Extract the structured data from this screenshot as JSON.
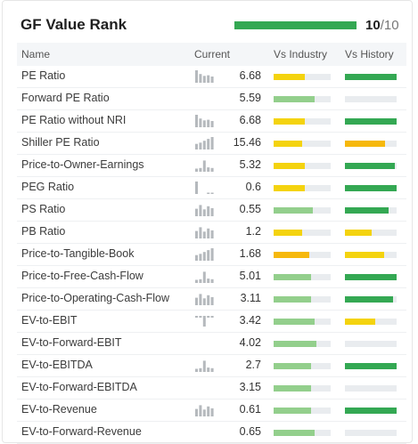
{
  "header": {
    "title": "GF Value Rank",
    "rank_value": "10",
    "rank_total": "/10",
    "rank_fraction": 1.0
  },
  "columns": {
    "name": "Name",
    "current": "Current",
    "vs_industry": "Vs Industry",
    "vs_history": "Vs History"
  },
  "colors": {
    "dark_green": "#34a853",
    "light_green": "#93cf8c",
    "yellow": "#f4d30f",
    "orange": "#f6b80c",
    "track": "#e9ecef"
  },
  "rows": [
    {
      "name": "PE Ratio",
      "value": "6.68",
      "spark": "bars-desc",
      "industry": {
        "level": 0.55,
        "color": "yellow"
      },
      "history": {
        "level": 1.0,
        "color": "dark_green"
      }
    },
    {
      "name": "Forward PE Ratio",
      "value": "5.59",
      "spark": "none",
      "industry": {
        "level": 0.72,
        "color": "light_green"
      },
      "history": {
        "level": 0.0,
        "color": "dark_green"
      }
    },
    {
      "name": "PE Ratio without NRI",
      "value": "6.68",
      "spark": "bars-desc",
      "industry": {
        "level": 0.55,
        "color": "yellow"
      },
      "history": {
        "level": 1.0,
        "color": "dark_green"
      }
    },
    {
      "name": "Shiller PE Ratio",
      "value": "15.46",
      "spark": "bars-asc",
      "industry": {
        "level": 0.5,
        "color": "yellow"
      },
      "history": {
        "level": 0.78,
        "color": "orange"
      }
    },
    {
      "name": "Price-to-Owner-Earnings",
      "value": "5.32",
      "spark": "bars-low",
      "industry": {
        "level": 0.55,
        "color": "yellow"
      },
      "history": {
        "level": 0.97,
        "color": "dark_green"
      }
    },
    {
      "name": "PEG Ratio",
      "value": "0.6",
      "spark": "bars-one",
      "industry": {
        "level": 0.55,
        "color": "yellow"
      },
      "history": {
        "level": 1.0,
        "color": "dark_green"
      }
    },
    {
      "name": "PS Ratio",
      "value": "0.55",
      "spark": "bars-mixed",
      "industry": {
        "level": 0.68,
        "color": "light_green"
      },
      "history": {
        "level": 0.85,
        "color": "dark_green"
      }
    },
    {
      "name": "PB Ratio",
      "value": "1.2",
      "spark": "bars-mixed",
      "industry": {
        "level": 0.5,
        "color": "yellow"
      },
      "history": {
        "level": 0.52,
        "color": "yellow"
      }
    },
    {
      "name": "Price-to-Tangible-Book",
      "value": "1.68",
      "spark": "bars-asc",
      "industry": {
        "level": 0.62,
        "color": "orange"
      },
      "history": {
        "level": 0.75,
        "color": "yellow"
      }
    },
    {
      "name": "Price-to-Free-Cash-Flow",
      "value": "5.01",
      "spark": "bars-low",
      "industry": {
        "level": 0.65,
        "color": "light_green"
      },
      "history": {
        "level": 1.0,
        "color": "dark_green"
      }
    },
    {
      "name": "Price-to-Operating-Cash-Flow",
      "value": "3.11",
      "spark": "bars-mixed",
      "industry": {
        "level": 0.65,
        "color": "light_green"
      },
      "history": {
        "level": 0.93,
        "color": "dark_green"
      }
    },
    {
      "name": "EV-to-EBIT",
      "value": "3.42",
      "spark": "bars-neg",
      "industry": {
        "level": 0.72,
        "color": "light_green"
      },
      "history": {
        "level": 0.58,
        "color": "yellow"
      }
    },
    {
      "name": "EV-to-Forward-EBIT",
      "value": "4.02",
      "spark": "none",
      "industry": {
        "level": 0.75,
        "color": "light_green"
      },
      "history": {
        "level": 0.0,
        "color": "dark_green"
      }
    },
    {
      "name": "EV-to-EBITDA",
      "value": "2.7",
      "spark": "bars-low",
      "industry": {
        "level": 0.65,
        "color": "light_green"
      },
      "history": {
        "level": 1.0,
        "color": "dark_green"
      }
    },
    {
      "name": "EV-to-Forward-EBITDA",
      "value": "3.15",
      "spark": "none",
      "industry": {
        "level": 0.65,
        "color": "light_green"
      },
      "history": {
        "level": 0.0,
        "color": "dark_green"
      }
    },
    {
      "name": "EV-to-Revenue",
      "value": "0.61",
      "spark": "bars-mixed",
      "industry": {
        "level": 0.65,
        "color": "light_green"
      },
      "history": {
        "level": 1.0,
        "color": "dark_green"
      }
    },
    {
      "name": "EV-to-Forward-Revenue",
      "value": "0.65",
      "spark": "none",
      "industry": {
        "level": 0.72,
        "color": "light_green"
      },
      "history": {
        "level": 0.0,
        "color": "dark_green"
      }
    }
  ]
}
